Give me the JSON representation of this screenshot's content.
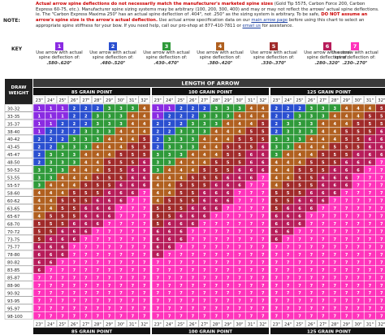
{
  "note": {
    "label": "NOTE:",
    "line1_red": "Actual arrow spine deflections do not necessarily match the manufacturer's marketed spine sizes",
    "line1_rest": " (Gold Tip 5575, Carbon Force 200, Carbon Express 60-75, etc.). Manufacturer spine sizing systems may be arbitrary (100, 200, 300, 400) and may or may not reflect the arrows' actual spine deflections. ie. The \"Carbon Express Maxima 250\" has an actual spine deflection of .404\", not .250\" as the sizing system is arbitrary. To be safe,",
    "line2_red": "DO NOT assume an arrow's spine size is the arrow's actual deflection.",
    "line2_rest": " Use actual arrow specification data on our ",
    "link": "main arrow page",
    "line2_end": " before using this chart to select an appropriate spine stiffness for your bow. If you need help, call our pro-shop at 877-410-7811 or ",
    "email": "email us",
    "line2_tail": " for assistance."
  },
  "key": {
    "label": "KEY",
    "caption": "Use arrow with actual spine deflection of:",
    "items": [
      {
        "num": "1",
        "color": "#8a2be2",
        "range": ".580-.620\""
      },
      {
        "num": "2",
        "color": "#2a4fd0",
        "range": ".480-.520\""
      },
      {
        "num": "3",
        "color": "#2f9a3a",
        "range": ".430-.470\""
      },
      {
        "num": "4",
        "color": "#b06020",
        "range": ".380-.420\""
      },
      {
        "num": "5",
        "color": "#a02a2a",
        "range": ".330-.370\""
      },
      {
        "num": "6",
        "color": "#b71c5a",
        "range": ".280-.320\""
      },
      {
        "num": "7",
        "color": "#ff33bb",
        "range": ".230-.270\""
      }
    ]
  },
  "chart_data": {
    "type": "heatmap",
    "title": "LENGTH OF ARROW",
    "row_header": "DRAW WEIGHT",
    "rows": [
      "30-32",
      "33-35",
      "35-37",
      "38-40",
      "40-42",
      "43-45",
      "45-47",
      "48-50",
      "50-52",
      "53-55",
      "55-57",
      "58-60",
      "60-62",
      "63-65",
      "65-67",
      "68-70",
      "70-72",
      "73-75",
      "75-77",
      "78-80",
      "80-82",
      "83-85",
      "85-87",
      "88-90",
      "90-92",
      "93-95",
      "95-97",
      "98-100"
    ],
    "lengths": [
      "23\"",
      "24\"",
      "25\"",
      "26\"",
      "27\"",
      "28\"",
      "29\"",
      "30\"",
      "31\"",
      "32\""
    ],
    "groups": [
      {
        "name": "85 GRAIN POINT",
        "shift": 0
      },
      {
        "name": "100 GRAIN POINT",
        "shift": 1
      },
      {
        "name": "125 GRAIN POINT",
        "shift": 2
      }
    ],
    "header_colors": {
      "top": "#3a3a3a",
      "sub": "#111111"
    }
  }
}
